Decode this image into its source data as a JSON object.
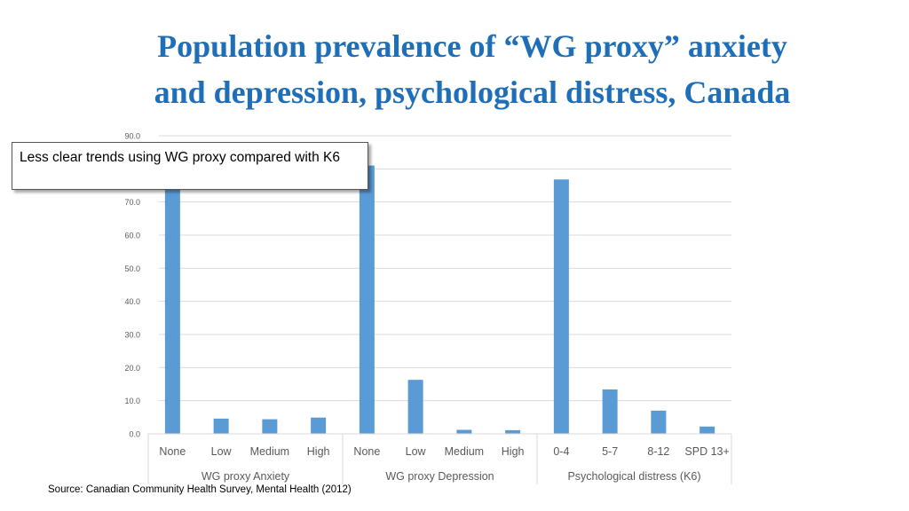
{
  "title_lines": [
    "Population prevalence of “WG proxy” anxiety",
    "and depression, psychological distress, Canada"
  ],
  "callout": "Less clear trends using WG proxy compared with K6",
  "source": "Source: Canadian Community Health Survey, Mental Health (2012)",
  "colors": {
    "title": "#1F6FB8",
    "bar": "#5B9BD5",
    "grid": "#D9D9D9",
    "axis_text": "#595959"
  },
  "chart_data": {
    "type": "bar",
    "title": "",
    "xlabel": "",
    "ylabel": "",
    "ylim": [
      0,
      90
    ],
    "yticks": [
      "0.0",
      "10.0",
      "20.0",
      "30.0",
      "40.0",
      "50.0",
      "60.0",
      "70.0",
      "80.0",
      "90.0"
    ],
    "grid": true,
    "legend": "none",
    "groups": [
      {
        "label": "WG proxy Anxiety",
        "categories": [
          "None",
          "Low",
          "Medium",
          "High"
        ],
        "values": [
          85.5,
          4.6,
          4.4,
          4.9
        ]
      },
      {
        "label": "WG proxy Depression",
        "categories": [
          "None",
          "Low",
          "Medium",
          "High"
        ],
        "values": [
          81.0,
          16.3,
          1.2,
          1.1
        ]
      },
      {
        "label": "Psychological distress (K6)",
        "categories": [
          "0-4",
          "5-7",
          "8-12",
          "SPD 13+"
        ],
        "values": [
          76.8,
          13.4,
          7.0,
          2.2
        ]
      }
    ]
  }
}
